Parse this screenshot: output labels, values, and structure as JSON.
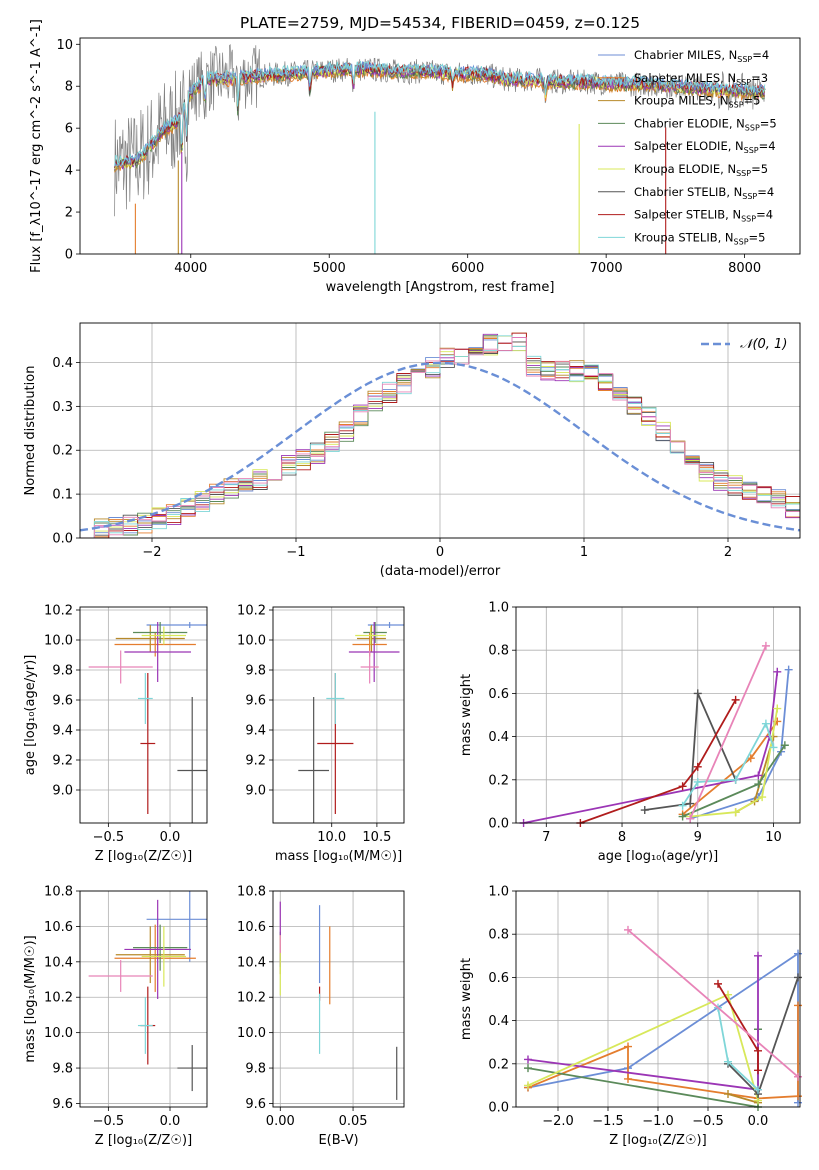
{
  "figure": {
    "title": "PLATE=2759, MJD=54534, FIBERID=0459, z=0.125"
  },
  "colors": {
    "chab_miles": "#6c8ed6",
    "salp_miles": "#e47d2e",
    "krou_miles": "#b7892a",
    "chab_elodie": "#5b8a5a",
    "salp_elodie": "#9b35b5",
    "krou_elodie": "#d8e85a",
    "chab_stelib": "#555555",
    "salp_stelib": "#b01c1c",
    "krou_stelib": "#7fd6d8",
    "pink": "#e884b8",
    "data_grey": "#808080",
    "normal": "#6a8fd6"
  },
  "legend_spectrum": [
    {
      "text": "Chabrier MILES, N",
      "sub": "SSP",
      "tail": "=4",
      "color": "chab_miles"
    },
    {
      "text": "Salpeter MILES, N",
      "sub": "SSP",
      "tail": "=3",
      "color": "salp_miles"
    },
    {
      "text": "Kroupa MILES, N",
      "sub": "SSP",
      "tail": "=5",
      "color": "krou_miles"
    },
    {
      "text": "Chabrier ELODIE, N",
      "sub": "SSP",
      "tail": "=5",
      "color": "chab_elodie"
    },
    {
      "text": "Salpeter ELODIE, N",
      "sub": "SSP",
      "tail": "=4",
      "color": "salp_elodie"
    },
    {
      "text": "Kroupa ELODIE, N",
      "sub": "SSP",
      "tail": "=5",
      "color": "krou_elodie"
    },
    {
      "text": "Chabrier STELIB, N",
      "sub": "SSP",
      "tail": "=4",
      "color": "chab_stelib"
    },
    {
      "text": "Salpeter STELIB, N",
      "sub": "SSP",
      "tail": "=4",
      "color": "salp_stelib"
    },
    {
      "text": "Kroupa STELIB, N",
      "sub": "SSP",
      "tail": "=5",
      "color": "krou_stelib"
    }
  ],
  "chart_data": [
    {
      "id": "spectrum",
      "type": "line",
      "xlabel": "wavelength [Angstrom, rest frame]",
      "ylabel": "Flux [f_λ10^-17 erg cm^-2 s^-1 A^-1]",
      "xlim": [
        3200,
        8400
      ],
      "ylim": [
        0,
        10.3
      ],
      "xticks": [
        "4000",
        "5000",
        "6000",
        "7000",
        "8000"
      ],
      "yticks": [
        "0",
        "2",
        "4",
        "6",
        "8",
        "10"
      ],
      "continuum": {
        "x": [
          3450,
          3600,
          3700,
          3800,
          3900,
          3950,
          4000,
          4100,
          4300,
          4500,
          4700,
          4900,
          5100,
          5300,
          5500,
          5700,
          5900,
          6100,
          6300,
          6500,
          6700,
          6900,
          7100,
          7300,
          7500,
          7700,
          7900,
          8150
        ],
        "y": [
          4.3,
          4.4,
          5.1,
          5.9,
          6.3,
          7.1,
          7.7,
          8.3,
          8.4,
          8.5,
          8.6,
          8.7,
          8.8,
          8.8,
          8.7,
          8.7,
          8.6,
          8.6,
          8.3,
          8.3,
          8.2,
          8.2,
          8.1,
          8.1,
          8.0,
          7.9,
          7.8,
          7.7
        ]
      }
    },
    {
      "id": "residuals",
      "type": "line",
      "xlabel": "(data-model)/error",
      "ylabel": "Normed distribution",
      "xlim": [
        -2.5,
        2.5
      ],
      "ylim": [
        0,
        0.49
      ],
      "xticks": [
        "−2",
        "−1",
        "0",
        "1",
        "2"
      ],
      "yticks": [
        "0.0",
        "0.1",
        "0.2",
        "0.3",
        "0.4"
      ],
      "legend": "𝒩(0, 1)",
      "bin_width": 0.1,
      "bin_start": -2.5,
      "hist_base": [
        0.02,
        0.02,
        0.025,
        0.03,
        0.035,
        0.045,
        0.055,
        0.07,
        0.085,
        0.1,
        0.115,
        0.125,
        0.135,
        0.15,
        0.165,
        0.18,
        0.195,
        0.22,
        0.245,
        0.28,
        0.31,
        0.33,
        0.35,
        0.375,
        0.39,
        0.41,
        0.42,
        0.43,
        0.44,
        0.445,
        0.45,
        0.39,
        0.38,
        0.38,
        0.38,
        0.37,
        0.35,
        0.32,
        0.3,
        0.28,
        0.24,
        0.2,
        0.17,
        0.15,
        0.13,
        0.12,
        0.11,
        0.1,
        0.085,
        0.07,
        0.06,
        0.055,
        0.045,
        0.04,
        0.035,
        0.035,
        0.03,
        0.025,
        0.02,
        0.015
      ]
    },
    {
      "id": "age_vs_Z",
      "type": "errorbar",
      "xlabel": "Z [log₁₀(Z/Z☉)]",
      "ylabel": "age  [log₁₀(age/yr)]",
      "xlim": [
        -0.73,
        0.3
      ],
      "ylim": [
        8.78,
        10.22
      ],
      "xticks": [
        "−0.5",
        "0.0"
      ],
      "yticks": [
        "9.0",
        "9.2",
        "9.4",
        "9.6",
        "9.8",
        "10.0",
        "10.2"
      ],
      "points": [
        {
          "c": "chab_miles",
          "x": 0.16,
          "xe": 0.35,
          "y": 10.1,
          "ye": 0.02
        },
        {
          "c": "salp_miles",
          "x": -0.12,
          "xe": 0.33,
          "y": 9.97,
          "ye": 0.08
        },
        {
          "c": "krou_miles",
          "x": -0.16,
          "xe": 0.28,
          "y": 10.01,
          "ye": 0.09
        },
        {
          "c": "chab_elodie",
          "x": -0.08,
          "xe": 0.22,
          "y": 10.05,
          "ye": 0.07
        },
        {
          "c": "salp_elodie",
          "x": -0.1,
          "xe": 0.27,
          "y": 9.92,
          "ye": 0.2
        },
        {
          "c": "krou_elodie",
          "x": -0.05,
          "xe": 0.18,
          "y": 10.03,
          "ye": 0.06
        },
        {
          "c": "chab_stelib",
          "x": 0.18,
          "xe": 0.12,
          "y": 9.13,
          "ye": 0.49
        },
        {
          "c": "salp_stelib",
          "x": -0.18,
          "xe": 0.06,
          "y": 9.31,
          "ye": 0.47
        },
        {
          "c": "krou_stelib",
          "x": -0.2,
          "xe": 0.06,
          "y": 9.61,
          "ye": 0.17
        },
        {
          "c": "pink",
          "x": -0.4,
          "xe": 0.26,
          "y": 9.82,
          "ye": 0.11
        }
      ]
    },
    {
      "id": "age_vs_mass",
      "type": "errorbar",
      "xlabel": "mass [log₁₀(M/M☉)]",
      "ylabel": "",
      "xlim": [
        9.35,
        10.8
      ],
      "ylim": [
        8.78,
        10.22
      ],
      "xticks": [
        "10.0",
        "10.5"
      ],
      "yticks": [
        "9.0",
        "9.2",
        "9.4",
        "9.6",
        "9.8",
        "10.0",
        "10.2"
      ],
      "points": [
        {
          "c": "chab_miles",
          "x": 10.64,
          "xe": 0.24,
          "y": 10.1,
          "ye": 0.02
        },
        {
          "c": "salp_miles",
          "x": 10.42,
          "xe": 0.19,
          "y": 9.97,
          "ye": 0.08
        },
        {
          "c": "krou_miles",
          "x": 10.44,
          "xe": 0.16,
          "y": 10.01,
          "ye": 0.09
        },
        {
          "c": "chab_elodie",
          "x": 10.48,
          "xe": 0.13,
          "y": 10.05,
          "ye": 0.07
        },
        {
          "c": "salp_elodie",
          "x": 10.47,
          "xe": 0.28,
          "y": 9.92,
          "ye": 0.2
        },
        {
          "c": "krou_elodie",
          "x": 10.43,
          "xe": 0.17,
          "y": 10.03,
          "ye": 0.06
        },
        {
          "c": "chab_stelib",
          "x": 9.8,
          "xe": 0.17,
          "y": 9.13,
          "ye": 0.49
        },
        {
          "c": "salp_stelib",
          "x": 10.04,
          "xe": 0.2,
          "y": 9.31,
          "ye": 0.47
        },
        {
          "c": "krou_stelib",
          "x": 10.04,
          "xe": 0.1,
          "y": 9.61,
          "ye": 0.17
        },
        {
          "c": "pink",
          "x": 10.42,
          "xe": 0.1,
          "y": 9.82,
          "ye": 0.11
        }
      ]
    },
    {
      "id": "mw_vs_age",
      "type": "line",
      "xlabel": "age  [log₁₀(age/yr)]",
      "ylabel": "mass weight",
      "xlim": [
        6.6,
        10.35
      ],
      "ylim": [
        0,
        1.0
      ],
      "xticks": [
        "7",
        "8",
        "9",
        "10"
      ],
      "yticks": [
        "0.0",
        "0.2",
        "0.4",
        "0.6",
        "0.8",
        "1.0"
      ],
      "series": [
        {
          "c": "chab_miles",
          "x": [
            8.9,
            9.8,
            10.1,
            10.2
          ],
          "y": [
            0.02,
            0.12,
            0.33,
            0.71
          ]
        },
        {
          "c": "salp_miles",
          "x": [
            8.8,
            9.7,
            10.05
          ],
          "y": [
            0.04,
            0.3,
            0.47
          ]
        },
        {
          "c": "krou_miles",
          "x": [
            9.5,
            9.75,
            10.0
          ],
          "y": [
            0.05,
            0.1,
            0.4
          ]
        },
        {
          "c": "chab_elodie",
          "x": [
            8.8,
            9.8,
            10.15
          ],
          "y": [
            0.03,
            0.18,
            0.36
          ]
        },
        {
          "c": "salp_elodie",
          "x": [
            6.7,
            9.8,
            9.95,
            10.05
          ],
          "y": [
            0.0,
            0.22,
            0.4,
            0.7
          ]
        },
        {
          "c": "krou_elodie",
          "x": [
            8.9,
            9.5,
            9.85,
            10.05
          ],
          "y": [
            0.03,
            0.05,
            0.12,
            0.53
          ]
        },
        {
          "c": "chab_stelib",
          "x": [
            8.3,
            8.9,
            9.0,
            9.5
          ],
          "y": [
            0.06,
            0.09,
            0.6,
            0.2
          ]
        },
        {
          "c": "salp_stelib",
          "x": [
            7.45,
            8.8,
            9.0,
            9.5
          ],
          "y": [
            0.0,
            0.17,
            0.26,
            0.57
          ]
        },
        {
          "c": "krou_stelib",
          "x": [
            8.8,
            9.0,
            9.5,
            9.9,
            10.0
          ],
          "y": [
            0.08,
            0.19,
            0.2,
            0.46,
            0.35
          ]
        },
        {
          "c": "pink",
          "x": [
            8.9,
            9.9
          ],
          "y": [
            0.02,
            0.82
          ]
        }
      ]
    },
    {
      "id": "mass_vs_Z",
      "type": "errorbar",
      "xlabel": "Z [log₁₀(Z/Z☉)]",
      "ylabel": "mass [log₁₀(M/M☉)]",
      "xlim": [
        -0.73,
        0.3
      ],
      "ylim": [
        9.58,
        10.8
      ],
      "xticks": [
        "−0.5",
        "0.0"
      ],
      "yticks": [
        "9.6",
        "9.8",
        "10.0",
        "10.2",
        "10.4",
        "10.6",
        "10.8"
      ],
      "points": [
        {
          "c": "chab_miles",
          "x": 0.16,
          "xe": 0.35,
          "y": 10.64,
          "ye": 0.24
        },
        {
          "c": "salp_miles",
          "x": -0.12,
          "xe": 0.33,
          "y": 10.42,
          "ye": 0.19
        },
        {
          "c": "krou_miles",
          "x": -0.16,
          "xe": 0.28,
          "y": 10.44,
          "ye": 0.16
        },
        {
          "c": "chab_elodie",
          "x": -0.08,
          "xe": 0.22,
          "y": 10.48,
          "ye": 0.13
        },
        {
          "c": "salp_elodie",
          "x": -0.1,
          "xe": 0.27,
          "y": 10.47,
          "ye": 0.28
        },
        {
          "c": "krou_elodie",
          "x": -0.05,
          "xe": 0.18,
          "y": 10.43,
          "ye": 0.17
        },
        {
          "c": "chab_stelib",
          "x": 0.18,
          "xe": 0.12,
          "y": 9.8,
          "ye": 0.13
        },
        {
          "c": "salp_stelib",
          "x": -0.18,
          "xe": 0.06,
          "y": 10.04,
          "ye": 0.22
        },
        {
          "c": "krou_stelib",
          "x": -0.2,
          "xe": 0.06,
          "y": 10.04,
          "ye": 0.16
        },
        {
          "c": "pink",
          "x": -0.4,
          "xe": 0.26,
          "y": 10.32,
          "ye": 0.09
        }
      ]
    },
    {
      "id": "mass_vs_ebv",
      "type": "errorbar",
      "xlabel": "E(B-V)",
      "ylabel": "",
      "xlim": [
        -0.005,
        0.085
      ],
      "ylim": [
        9.58,
        10.8
      ],
      "xticks": [
        "0.00",
        "0.05"
      ],
      "yticks": [
        "9.6",
        "9.8",
        "10.0",
        "10.2",
        "10.4",
        "10.6",
        "10.8"
      ],
      "points": [
        {
          "c": "chab_miles",
          "x": 0.027,
          "xe": 0.0,
          "y": 10.5,
          "ye": 0.22
        },
        {
          "c": "salp_miles",
          "x": 0.034,
          "xe": 0.0,
          "y": 10.38,
          "ye": 0.22
        },
        {
          "c": "krou_miles",
          "x": 0.0,
          "xe": 0.0,
          "y": 10.43,
          "ye": 0.1
        },
        {
          "c": "chab_elodie",
          "x": 0.0,
          "xe": 0.0,
          "y": 10.47,
          "ye": 0.1
        },
        {
          "c": "salp_elodie",
          "x": 0.0,
          "xe": 0.0,
          "y": 10.56,
          "ye": 0.18
        },
        {
          "c": "krou_elodie",
          "x": 0.0,
          "xe": 0.0,
          "y": 10.38,
          "ye": 0.17
        },
        {
          "c": "chab_stelib",
          "x": 0.08,
          "xe": 0.0,
          "y": 9.77,
          "ye": 0.15
        },
        {
          "c": "salp_stelib",
          "x": 0.027,
          "xe": 0.0,
          "y": 10.22,
          "ye": 0.04
        },
        {
          "c": "krou_stelib",
          "x": 0.027,
          "xe": 0.0,
          "y": 10.05,
          "ye": 0.17
        },
        {
          "c": "pink",
          "x": 0.0,
          "xe": 0.0,
          "y": 10.5,
          "ye": 0.05
        }
      ]
    },
    {
      "id": "mw_vs_Z",
      "type": "line",
      "xlabel": "Z [log₁₀(Z/Z☉)]",
      "ylabel": "mass weight",
      "xlim": [
        -2.42,
        0.42
      ],
      "ylim": [
        0,
        1.0
      ],
      "xticks": [
        "−2.0",
        "−1.5",
        "−1.0",
        "−0.5",
        "0.0"
      ],
      "yticks": [
        "0.0",
        "0.2",
        "0.4",
        "0.6",
        "0.8",
        "1.0"
      ],
      "series": [
        {
          "c": "chab_miles",
          "x": [
            -2.3,
            -1.3,
            0.4,
            0.4
          ],
          "y": [
            0.09,
            0.18,
            0.71,
            0.02
          ]
        },
        {
          "c": "salp_miles",
          "x": [
            -2.3,
            -1.3,
            -1.3,
            0.0,
            0.4,
            0.4
          ],
          "y": [
            0.09,
            0.28,
            0.13,
            0.04,
            0.05,
            0.47
          ]
        },
        {
          "c": "krou_miles",
          "x": [
            -0.3,
            0.0
          ],
          "y": [
            0.06,
            0.02
          ]
        },
        {
          "c": "chab_elodie",
          "x": [
            -2.3,
            0.0,
            0.0
          ],
          "y": [
            0.18,
            0.0,
            0.36
          ]
        },
        {
          "c": "salp_elodie",
          "x": [
            -2.3,
            0.0,
            0.0
          ],
          "y": [
            0.22,
            0.08,
            0.7
          ]
        },
        {
          "c": "krou_elodie",
          "x": [
            -2.3,
            -0.3,
            0.0
          ],
          "y": [
            0.1,
            0.52,
            0.03
          ]
        },
        {
          "c": "chab_stelib",
          "x": [
            -0.3,
            0.0,
            0.4
          ],
          "y": [
            0.2,
            0.06,
            0.6
          ]
        },
        {
          "c": "salp_stelib",
          "x": [
            -0.4,
            0.0,
            0.0
          ],
          "y": [
            0.57,
            0.26,
            0.17
          ]
        },
        {
          "c": "krou_stelib",
          "x": [
            -0.4,
            -0.3,
            0.0
          ],
          "y": [
            0.46,
            0.21,
            0.08
          ]
        },
        {
          "c": "pink",
          "x": [
            -1.3,
            0.4
          ],
          "y": [
            0.82,
            0.14
          ]
        }
      ]
    }
  ]
}
